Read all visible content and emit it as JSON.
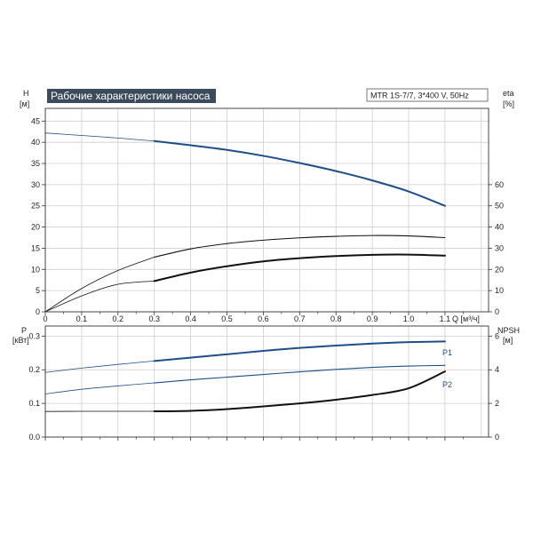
{
  "title": "Рабочие характеристики насоса",
  "model": "MTR 1S-7/7, 3*400 V, 50Hz",
  "colors": {
    "title_bg": "#3b4a5c",
    "blue": "#1d4e89",
    "black": "#111111",
    "grid": "#cfcfcf"
  },
  "chart_data": [
    {
      "type": "line",
      "panel": "top",
      "xlabel": "Q [м³/ч]",
      "x_ticks": [
        "0",
        "0.1",
        "0.2",
        "0.3",
        "0.4",
        "0.5",
        "0.6",
        "0.7",
        "0.8",
        "0.9",
        "1.0",
        "1.1"
      ],
      "xlim": [
        0,
        1.22
      ],
      "ylabel_left": "H",
      "unit_left": "[м]",
      "ylim_left": [
        0,
        48
      ],
      "y_ticks_left": [
        "0",
        "5",
        "10",
        "15",
        "20",
        "25",
        "30",
        "35",
        "40",
        "45"
      ],
      "ylabel_right": "eta",
      "unit_right": "[%]",
      "ylim_right": [
        0,
        96
      ],
      "y_ticks_right": [
        "0",
        "10",
        "20",
        "30",
        "40",
        "50",
        "60"
      ],
      "grid": true,
      "series": [
        {
          "name": "H",
          "axis": "left",
          "color": "#1d4e89",
          "x": [
            0,
            0.1,
            0.2,
            0.3,
            0.4,
            0.5,
            0.6,
            0.7,
            0.8,
            0.9,
            1.0,
            1.1
          ],
          "y": [
            42.2,
            41.6,
            41.0,
            40.3,
            39.3,
            38.2,
            36.8,
            35.1,
            33.2,
            31.0,
            28.4,
            25.0
          ],
          "thin_before": 0.3,
          "thick_from": 0.3
        },
        {
          "axis": "right",
          "color": "#111111",
          "x": [
            0,
            0.1,
            0.2,
            0.3,
            0.4,
            0.5,
            0.6,
            0.7,
            0.8,
            0.9,
            1.0,
            1.1
          ],
          "y": [
            0,
            11,
            19.5,
            25.8,
            29.7,
            32.2,
            33.8,
            34.9,
            35.6,
            36.0,
            35.8,
            35.0
          ],
          "thin_before": 0.3,
          "thick_from": 0.3,
          "stroke": "thin"
        },
        {
          "axis": "right",
          "color": "#111111",
          "x": [
            0,
            0.1,
            0.2,
            0.3,
            0.4,
            0.5,
            0.6,
            0.7,
            0.8,
            0.9,
            1.0,
            1.1
          ],
          "y": [
            0,
            7.5,
            13,
            14.5,
            18.5,
            21.5,
            23.8,
            25.3,
            26.3,
            26.9,
            27.0,
            26.5
          ],
          "thin_before": 0.3,
          "thick_from": 0.3,
          "stroke": "thick"
        }
      ]
    },
    {
      "type": "line",
      "panel": "bottom",
      "xlim": [
        0,
        1.22
      ],
      "ylabel_left": "P",
      "unit_left": "[кВт]",
      "ylim_left": [
        0,
        0.33
      ],
      "y_ticks_left": [
        "0.0",
        "0.1",
        "0.2",
        "0.3"
      ],
      "ylabel_right": "NPSH",
      "unit_right": "[м]",
      "ylim_right": [
        0,
        6.6
      ],
      "y_ticks_right": [
        "0",
        "2",
        "4",
        "6"
      ],
      "grid": true,
      "series": [
        {
          "name": "P1",
          "axis": "left",
          "color": "#1d4e89",
          "x": [
            0,
            0.1,
            0.2,
            0.3,
            0.4,
            0.5,
            0.6,
            0.7,
            0.8,
            0.9,
            1.0,
            1.1
          ],
          "y": [
            0.192,
            0.205,
            0.216,
            0.226,
            0.236,
            0.246,
            0.256,
            0.265,
            0.272,
            0.278,
            0.282,
            0.284
          ],
          "thin_before": 0.3,
          "thick_from": 0.3,
          "stroke": "thick"
        },
        {
          "name": "P2",
          "axis": "left",
          "color": "#1d4e89",
          "x": [
            0,
            0.1,
            0.2,
            0.3,
            0.4,
            0.5,
            0.6,
            0.7,
            0.8,
            0.9,
            1.0,
            1.1
          ],
          "y": [
            0.128,
            0.142,
            0.152,
            0.161,
            0.17,
            0.178,
            0.186,
            0.194,
            0.201,
            0.207,
            0.211,
            0.213
          ],
          "thin_before": 0.3,
          "thick_from": 0.3,
          "stroke": "thin"
        },
        {
          "axis": "right",
          "color": "#111111",
          "x": [
            0,
            0.1,
            0.2,
            0.3,
            0.4,
            0.5,
            0.6,
            0.7,
            0.8,
            0.9,
            1.0,
            1.1
          ],
          "y": [
            1.52,
            1.53,
            1.53,
            1.53,
            1.56,
            1.66,
            1.82,
            2.0,
            2.22,
            2.5,
            2.9,
            3.9
          ],
          "thin_before": 0.3,
          "thick_from": 0.3,
          "stroke": "thick"
        }
      ]
    }
  ]
}
